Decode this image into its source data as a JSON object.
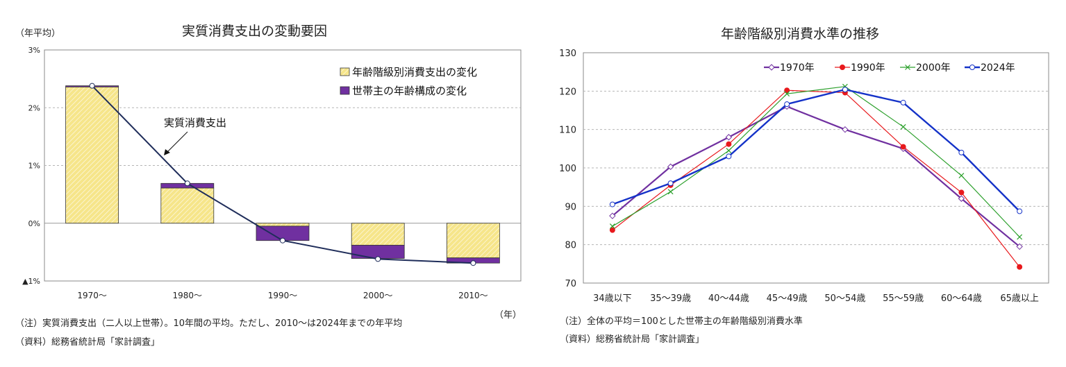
{
  "left": {
    "title": "実質消費支出の変動要因",
    "yunit": "（年平均）",
    "xunit": "（年）",
    "note": "（注）実質消費支出（二人以上世帯）。10年間の平均。ただし、2010～は2024年までの年平均",
    "source": "（資料）総務省統計局「家計調査」",
    "line_label": "実質消費支出"
  },
  "right": {
    "title": "年齢階級別消費水準の推移",
    "note": "（注）全体の平均＝100とした世帯主の年齢階級別消費水準",
    "source": "（資料）総務省統計局「家計調査」"
  },
  "chart_data": [
    {
      "type": "bar",
      "title": "実質消費支出の変動要因",
      "categories": [
        "1970～",
        "1980～",
        "1990～",
        "2000～",
        "2010～"
      ],
      "ylim": [
        -1,
        3
      ],
      "yticks": [
        {
          "value": 3,
          "label": "3%"
        },
        {
          "value": 2,
          "label": "2%"
        },
        {
          "value": 1,
          "label": "1%"
        },
        {
          "value": 0,
          "label": "0%"
        },
        {
          "value": -1,
          "label": "▲1%"
        }
      ],
      "grid": true,
      "legend": "top-right",
      "series": [
        {
          "name": "年齢階級別消費支出の変化",
          "color": "#f6e58a",
          "values": [
            2.36,
            0.61,
            -0.05,
            -0.38,
            -0.6
          ]
        },
        {
          "name": "世帯主の年齢構成の変化",
          "color": "#7030a0",
          "values": [
            0.02,
            0.08,
            -0.25,
            -0.23,
            -0.09
          ]
        }
      ],
      "line": {
        "name": "実質消費支出",
        "color": "#1f2d5a",
        "values": [
          2.38,
          0.69,
          -0.3,
          -0.62,
          -0.69
        ]
      }
    },
    {
      "type": "line",
      "title": "年齢階級別消費水準の推移",
      "categories": [
        "34歳以下",
        "35～39歳",
        "40～44歳",
        "45～49歳",
        "50～54歳",
        "55～59歳",
        "60～64歳",
        "65歳以上"
      ],
      "ylim": [
        70,
        130
      ],
      "yticks": [
        130,
        120,
        110,
        100,
        90,
        80,
        70
      ],
      "grid": true,
      "legend": "top-center",
      "series": [
        {
          "name": "1970年",
          "color": "#7030a0",
          "marker": "open-diamond",
          "values": [
            87.5,
            100.3,
            108.0,
            116.0,
            110.0,
            105.0,
            92.0,
            79.5
          ]
        },
        {
          "name": "1990年",
          "color": "#e8191c",
          "marker": "filled-circle",
          "values": [
            83.8,
            95.5,
            106.2,
            120.2,
            119.6,
            105.5,
            93.6,
            74.2
          ]
        },
        {
          "name": "2000年",
          "color": "#2ca02c",
          "marker": "x",
          "values": [
            84.8,
            93.8,
            104.5,
            119.3,
            121.2,
            110.7,
            98.0,
            82.0
          ]
        },
        {
          "name": "2024年",
          "color": "#1432c8",
          "marker": "open-circle",
          "values": [
            90.5,
            96.0,
            103.0,
            116.6,
            120.4,
            117.0,
            104.0,
            88.7
          ]
        }
      ]
    }
  ]
}
